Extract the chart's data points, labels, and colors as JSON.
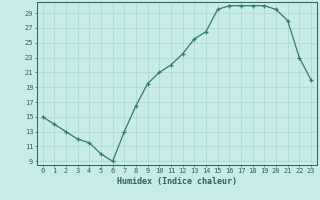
{
  "x": [
    0,
    1,
    2,
    3,
    4,
    5,
    6,
    7,
    8,
    9,
    10,
    11,
    12,
    13,
    14,
    15,
    16,
    17,
    18,
    19,
    20,
    21,
    22,
    23
  ],
  "y": [
    15.0,
    14.0,
    13.0,
    12.0,
    11.5,
    10.0,
    9.0,
    13.0,
    16.5,
    19.5,
    21.0,
    22.0,
    23.5,
    25.5,
    26.5,
    29.5,
    30.0,
    30.0,
    30.0,
    30.0,
    29.5,
    28.0,
    23.0,
    20.0
  ],
  "xlabel": "Humidex (Indice chaleur)",
  "xlim": [
    -0.5,
    23.5
  ],
  "ylim": [
    8.5,
    30.5
  ],
  "yticks": [
    9,
    11,
    13,
    15,
    17,
    19,
    21,
    23,
    25,
    27,
    29
  ],
  "xticks": [
    0,
    1,
    2,
    3,
    4,
    5,
    6,
    7,
    8,
    9,
    10,
    11,
    12,
    13,
    14,
    15,
    16,
    17,
    18,
    19,
    20,
    21,
    22,
    23
  ],
  "line_color": "#2e7d6e",
  "marker_color": "#2e7d6e",
  "bg_color": "#c8ebe8",
  "grid_color": "#a8d8d4",
  "tick_label_color": "#2e6060",
  "axis_color": "#2e6060"
}
